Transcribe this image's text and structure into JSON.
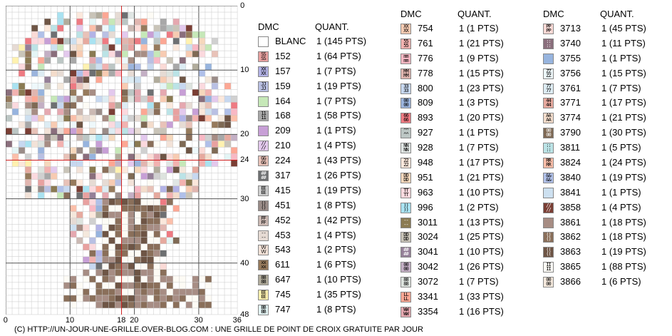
{
  "pattern": {
    "columns": 36,
    "rows": 48,
    "x_ticks": [
      {
        "value": 0,
        "label": "0"
      },
      {
        "value": 10,
        "label": "10"
      },
      {
        "value": 18,
        "label": "18"
      },
      {
        "value": 20,
        "label": "20"
      },
      {
        "value": 30,
        "label": "30"
      },
      {
        "value": 36,
        "label": "36"
      }
    ],
    "y_ticks": [
      {
        "value": 0,
        "label": "0"
      },
      {
        "value": 10,
        "label": "10"
      },
      {
        "value": 20,
        "label": "20"
      },
      {
        "value": 24,
        "label": "24"
      },
      {
        "value": 30,
        "label": "30"
      },
      {
        "value": 40,
        "label": "40"
      },
      {
        "value": 48,
        "label": "48"
      }
    ],
    "center_col": 18,
    "center_row": 24
  },
  "legend": {
    "header_dmc": "DMC",
    "header_qty": "QUANT.",
    "columns": [
      [
        {
          "code": "BLANC",
          "qty": "1 (145 PTS)",
          "color": "#ffffff",
          "sym": ""
        },
        {
          "code": "152",
          "qty": "1 (64 PTS)",
          "color": "#e8a1a0",
          "sym": "SS"
        },
        {
          "code": "157",
          "qty": "1 (7 PTS)",
          "color": "#b3b3e6",
          "sym": "XX"
        },
        {
          "code": "159",
          "qty": "1 (19 PTS)",
          "color": "#b9c0e3",
          "sym": "JJ"
        },
        {
          "code": "164",
          "qty": "1 (7 PTS)",
          "color": "#c6e8b8",
          "sym": ""
        },
        {
          "code": "168",
          "qty": "1 (58 PTS)",
          "color": "#a8a8a8",
          "sym": "11"
        },
        {
          "code": "209",
          "qty": "1 (1 PTS)",
          "color": "#c79fd6",
          "sym": ""
        },
        {
          "code": "210",
          "qty": "1 (4 PTS)",
          "color": "#e3c9ed",
          "sym": "//"
        },
        {
          "code": "224",
          "qty": "1 (43 PTS)",
          "color": "#e8c2b8",
          "sym": "GG"
        },
        {
          "code": "317",
          "qty": "1 (26 PTS)",
          "color": "#6e7072",
          "sym": "##"
        },
        {
          "code": "415",
          "qty": "1 (19 PTS)",
          "color": "#d0d0d0",
          "sym": "EE"
        },
        {
          "code": "451",
          "qty": "1 (8 PTS)",
          "color": "#9a8c88",
          "sym": "()"
        },
        {
          "code": "452",
          "qty": "1 (42 PTS)",
          "color": "#cbb9b3",
          "sym": "FF"
        },
        {
          "code": "453",
          "qty": "1 (4 PTS)",
          "color": "#e6dbd4",
          "sym": "--"
        },
        {
          "code": "543",
          "qty": "1 (2 PTS)",
          "color": "#f2e2d8",
          "sym": "VV"
        },
        {
          "code": "611",
          "qty": "1 (6 PTS)",
          "color": "#967a5c",
          "sym": "xx"
        },
        {
          "code": "647",
          "qty": "1 (10 PTS)",
          "color": "#b1ac9c",
          "sym": "88"
        },
        {
          "code": "745",
          "qty": "1 (35 PTS)",
          "color": "#fff2b0",
          "sym": "EE"
        },
        {
          "code": "747",
          "qty": "1 (8 PTS)",
          "color": "#e4f5f5",
          "sym": "BB"
        }
      ],
      [
        {
          "code": "754",
          "qty": "1 (1 PTS)",
          "color": "#f7cbb2",
          "sym": "XX"
        },
        {
          "code": "761",
          "qty": "1 (21 PTS)",
          "color": "#f2b2b0",
          "sym": "55"
        },
        {
          "code": "776",
          "qty": "1 (9 PTS)",
          "color": "#f8b8c4",
          "sym": "mm"
        },
        {
          "code": "778",
          "qty": "1 (15 PTS)",
          "color": "#e1b6b0",
          "sym": "MM"
        },
        {
          "code": "800",
          "qty": "1 (23 PTS)",
          "color": "#c7d8f0",
          "sym": "33"
        },
        {
          "code": "809",
          "qty": "1 (3 PTS)",
          "color": "#9bb4dd",
          "sym": "00"
        },
        {
          "code": "893",
          "qty": "1 (20 PTS)",
          "color": "#ee7a82",
          "sym": "66"
        },
        {
          "code": "927",
          "qty": "1 (1 PTS)",
          "color": "#bcc6c4",
          "sym": "^^"
        },
        {
          "code": "928",
          "qty": "1 (7 PTS)",
          "color": "#e0e6e4",
          "sym": "NN"
        },
        {
          "code": "948",
          "qty": "1 (17 PTS)",
          "color": "#fbe8dc",
          "sym": "22"
        },
        {
          "code": "951",
          "qty": "1 (21 PTS)",
          "color": "#f6d8bc",
          "sym": "DD"
        },
        {
          "code": "963",
          "qty": "1 (10 PTS)",
          "color": "#fbd9de",
          "sym": "TT"
        },
        {
          "code": "996",
          "qty": "1 (2 PTS)",
          "color": "#a9e2f1",
          "sym": "))"
        },
        {
          "code": "3011",
          "qty": "1 (13 PTS)",
          "color": "#8a7a52",
          "sym": "--"
        },
        {
          "code": "3024",
          "qty": "1 (25 PTS)",
          "color": "#c9c4b8",
          "sym": "DD"
        },
        {
          "code": "3041",
          "qty": "1 (10 PTS)",
          "color": "#958098",
          "sym": "##"
        },
        {
          "code": "3042",
          "qty": "1 (26 PTS)",
          "color": "#c3afc4",
          "sym": "00"
        },
        {
          "code": "3072",
          "qty": "1 (7 PTS)",
          "color": "#dde3de",
          "sym": "88"
        },
        {
          "code": "3341",
          "qty": "1 (33 PTS)",
          "color": "#fca794",
          "sym": "LL"
        },
        {
          "code": "3354",
          "qty": "1 (16 PTS)",
          "color": "#e5a8b0",
          "sym": "WW"
        }
      ],
      [
        {
          "code": "3713",
          "qty": "1 (45 PTS)",
          "color": "#fbdad6",
          "sym": "PP"
        },
        {
          "code": "3740",
          "qty": "1 (11 PTS)",
          "color": "#8a6e7c",
          "sym": "::"
        },
        {
          "code": "3755",
          "qty": "1 (1 PTS)",
          "color": "#97b4de",
          "sym": ""
        },
        {
          "code": "3756",
          "qty": "1 (15 PTS)",
          "color": "#eef8fb",
          "sym": "ZZ"
        },
        {
          "code": "3761",
          "qty": "1 (7 PTS)",
          "color": "#ddecf3",
          "sym": "77"
        },
        {
          "code": "3771",
          "qty": "1 (17 PTS)",
          "color": "#e6a99e",
          "sym": "44"
        },
        {
          "code": "3774",
          "qty": "1 (21 PTS)",
          "color": "#f3dccb",
          "sym": "AA"
        },
        {
          "code": "3790",
          "qty": "1 (30 PTS)",
          "color": "#7f6a55",
          "sym": "00"
        },
        {
          "code": "3811",
          "qty": "1 (5 PTS)",
          "color": "#bbe3e6",
          "sym": "::"
        },
        {
          "code": "3824",
          "qty": "1 (24 PTS)",
          "color": "#fbbfaa",
          "sym": "RR"
        },
        {
          "code": "3840",
          "qty": "1 (19 PTS)",
          "color": "#b0c0e9",
          "sym": "&&"
        },
        {
          "code": "3841",
          "qty": "1 (1 PTS)",
          "color": "#cde0f0",
          "sym": ""
        },
        {
          "code": "3858",
          "qty": "1 (4 PTS)",
          "color": "#7a3e34",
          "sym": "//"
        },
        {
          "code": "3861",
          "qty": "1 (18 PTS)",
          "color": "#a78d84",
          "sym": ""
        },
        {
          "code": "3862",
          "qty": "1 (18 PTS)",
          "color": "#8a6f5a",
          "sym": "()"
        },
        {
          "code": "3863",
          "qty": "1 (19 PTS)",
          "color": "#6e5545",
          "sym": "(("
        },
        {
          "code": "3865",
          "qty": "1 (88 PTS)",
          "color": "#fdfbf5",
          "sym": "II"
        },
        {
          "code": "3866",
          "qty": "1 (6 PTS)",
          "color": "#f4e8dc",
          "sym": "00"
        }
      ]
    ]
  },
  "footer": {
    "text": "(C) HTTP://UN-JOUR-UNE-GRILLE.OVER-BLOG.COM : UNE GRILLE DE POINT DE CROIX GRATUITE PAR JOUR"
  }
}
